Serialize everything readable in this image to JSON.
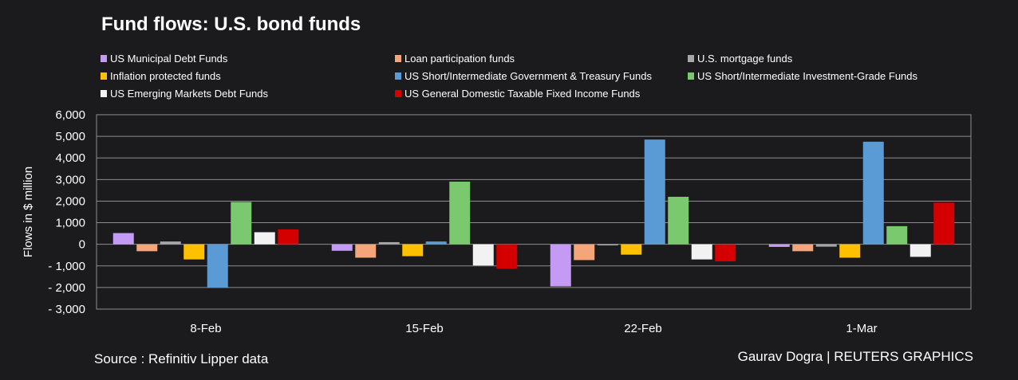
{
  "title": "Fund flows: U.S. bond funds",
  "source": "Source : Refinitiv Lipper data",
  "credit": "Gaurav Dogra | REUTERS GRAPHICS",
  "chart_data": {
    "type": "bar",
    "title": "Fund flows: U.S. bond funds",
    "xlabel": "",
    "ylabel": "Flows in $ million",
    "ylim": [
      -3000,
      6000
    ],
    "yticks": [
      6000,
      5000,
      4000,
      3000,
      2000,
      1000,
      0,
      -1000,
      -2000,
      -3000
    ],
    "ytick_labels": [
      "6,000",
      "5,000",
      "4,000",
      "3,000",
      "2,000",
      "1,000",
      "0",
      "- 1,000",
      "- 2,000",
      "- 3,000"
    ],
    "categories": [
      "8-Feb",
      "15-Feb",
      "22-Feb",
      "1-Mar"
    ],
    "legend_position": "top",
    "series": [
      {
        "name": "US Municipal Debt Funds",
        "color": "#c39bf5",
        "values": [
          520,
          -300,
          -1950,
          -120
        ]
      },
      {
        "name": "Loan participation funds",
        "color": "#f4a57a",
        "values": [
          -320,
          -620,
          -730,
          -320
        ]
      },
      {
        "name": "U.S. mortgage funds",
        "color": "#a6a6a6",
        "values": [
          130,
          100,
          -50,
          -110
        ]
      },
      {
        "name": "Inflation protected funds",
        "color": "#ffc000",
        "values": [
          -700,
          -550,
          -480,
          -620
        ]
      },
      {
        "name": "US Short/Intermediate Government & Treasury Funds",
        "color": "#5b9bd5",
        "values": [
          -2010,
          130,
          4850,
          4750
        ]
      },
      {
        "name": "US Short/Intermediate Investment-Grade Funds",
        "color": "#7ac96e",
        "values": [
          1960,
          2900,
          2200,
          840
        ]
      },
      {
        "name": "US Emerging Markets Debt Funds",
        "color": "#f2f2f2",
        "values": [
          560,
          -980,
          -700,
          -580
        ]
      },
      {
        "name": "US General Domestic Taxable Fixed Income Funds",
        "color": "#d40000",
        "values": [
          690,
          -1130,
          -790,
          1930
        ]
      }
    ]
  }
}
